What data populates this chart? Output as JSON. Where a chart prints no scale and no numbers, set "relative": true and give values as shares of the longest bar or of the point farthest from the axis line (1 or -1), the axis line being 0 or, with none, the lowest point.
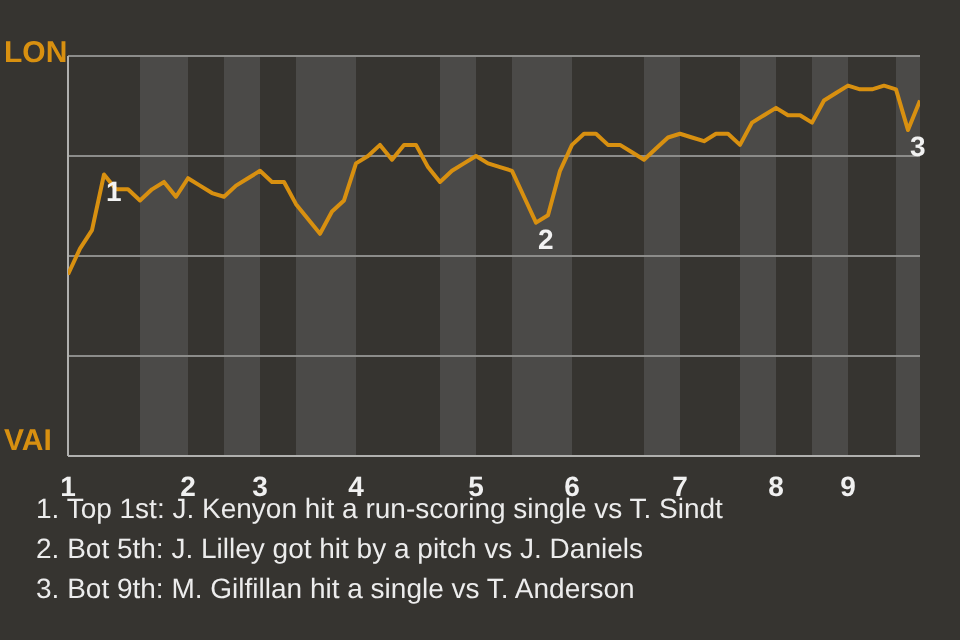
{
  "chart_data": {
    "type": "line",
    "relative": true,
    "categories": [
      "1",
      null,
      null,
      null,
      null,
      null,
      null,
      null,
      null,
      null,
      "2",
      null,
      null,
      null,
      null,
      null,
      "3",
      null,
      null,
      null,
      null,
      null,
      null,
      null,
      "4",
      null,
      null,
      null,
      null,
      null,
      null,
      null,
      null,
      null,
      "5",
      null,
      null,
      null,
      null,
      null,
      null,
      null,
      "6",
      null,
      null,
      null,
      null,
      null,
      null,
      null,
      null,
      "7",
      null,
      null,
      null,
      null,
      null,
      null,
      null,
      "8",
      null,
      null,
      null,
      null,
      null,
      "9",
      null,
      null,
      null,
      null,
      null,
      null
    ],
    "series": [
      {
        "color": "#d89010",
        "values": [
          0.49,
          0.56,
          0.61,
          0.76,
          0.72,
          0.72,
          0.69,
          0.72,
          0.74,
          0.7,
          0.75,
          0.73,
          0.71,
          0.7,
          0.73,
          0.75,
          0.77,
          0.74,
          0.74,
          0.68,
          0.64,
          0.6,
          0.66,
          0.69,
          0.79,
          0.81,
          0.84,
          0.8,
          0.84,
          0.84,
          0.78,
          0.74,
          0.77,
          0.79,
          0.81,
          0.79,
          0.78,
          0.77,
          0.7,
          0.63,
          0.65,
          0.77,
          0.84,
          0.87,
          0.87,
          0.84,
          0.84,
          0.82,
          0.8,
          0.83,
          0.86,
          0.87,
          0.86,
          0.85,
          0.87,
          0.87,
          0.84,
          0.9,
          0.92,
          0.94,
          0.92,
          0.92,
          0.9,
          0.96,
          0.98,
          1,
          0.99,
          0.99,
          1,
          0.99,
          0.88,
          0.96
        ]
      }
    ],
    "grid": "y",
    "legend": false,
    "marker": "none",
    "line_style": "solid",
    "annotations": [
      "LON",
      "VAI",
      {
        "text": "1",
        "y": 0.76
      },
      {
        "text": "2",
        "y": 0.63
      },
      {
        "text": "3",
        "y": 0.88
      },
      "1. Top 1st: J. Kenyon hit a run-scoring single vs T. Sindt",
      "2. Bot 5th: J. Lilley got hit by a pitch vs J. Daniels",
      "3. Bot 9th: M. Gilfillan hit a single vs T. Anderson"
    ]
  }
}
